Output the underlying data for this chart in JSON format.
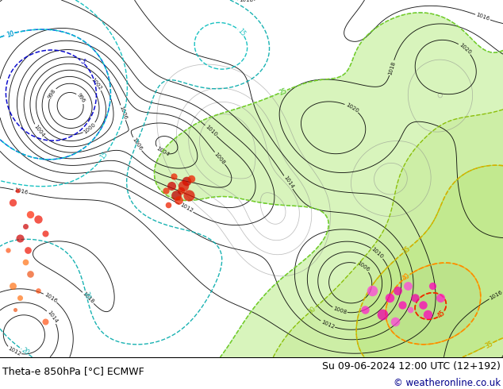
{
  "title_left": "Theta-e 850hPa [°C] ECMWF",
  "title_right": "Su 09-06-2024 12:00 UTC (12+192)",
  "credit": "© weatheronline.co.uk",
  "bg_color": "#ffffff",
  "fig_width": 6.34,
  "fig_height": 4.9,
  "dpi": 100,
  "bottom_bar_height": 0.082,
  "title_fontsize": 9.0,
  "credit_fontsize": 8.5,
  "title_color": "#000000",
  "credit_color": "#00008B",
  "seed": 42
}
